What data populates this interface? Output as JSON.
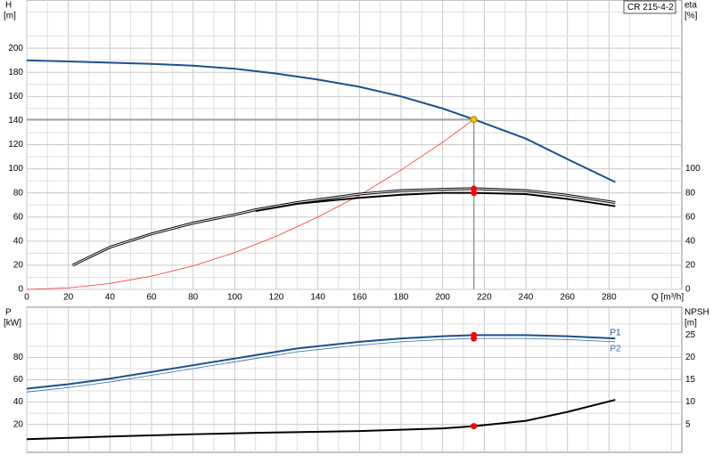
{
  "chart_data": [
    {
      "type": "line",
      "model": "CR 215-4-2",
      "ylabel": "H",
      "yunit": "[m]",
      "y2label": "eta",
      "y2unit": "[%]",
      "xlabel": "Q [m³/h]",
      "xlim": [
        0,
        315
      ],
      "xticks": [
        0,
        20,
        40,
        60,
        80,
        100,
        120,
        140,
        160,
        180,
        200,
        220,
        240,
        260,
        280
      ],
      "ylim": [
        0,
        240
      ],
      "yticks": [
        0,
        20,
        40,
        60,
        80,
        100,
        120,
        140,
        160,
        180,
        200
      ],
      "y2lim": [
        0,
        240
      ],
      "y2ticks": [
        0,
        20,
        40,
        60,
        80,
        100
      ],
      "grid": true,
      "series": [
        {
          "color": "#1c4f8f",
          "style": "thick",
          "x": [
            0,
            20,
            40,
            60,
            80,
            100,
            110,
            120,
            140,
            160,
            180,
            200,
            215,
            240,
            260,
            283
          ],
          "values": [
            190,
            189,
            188,
            187,
            185.5,
            183,
            181,
            179,
            174,
            168,
            160,
            150,
            141,
            125,
            108,
            89
          ]
        },
        {
          "color": "#ff3030",
          "style": "thin",
          "x": [
            0,
            20,
            40,
            60,
            80,
            100,
            120,
            140,
            160,
            180,
            200,
            215
          ],
          "values": [
            0,
            1.2,
            4.9,
            11,
            19.5,
            30.5,
            44,
            60,
            78,
            99,
            122,
            141
          ]
        },
        {
          "color": "#000000",
          "style": "double",
          "axis": "y2",
          "x": [
            22,
            40,
            60,
            80,
            100,
            110,
            130,
            160,
            180,
            200,
            215,
            240,
            260,
            283
          ],
          "values": [
            20,
            35,
            46,
            55,
            62,
            66,
            72,
            79,
            82,
            83,
            83.5,
            82,
            78,
            72
          ]
        },
        {
          "color": "#000000",
          "style": "thick",
          "axis": "y2",
          "x": [
            110,
            130,
            160,
            180,
            200,
            215,
            240,
            260,
            283
          ],
          "values": [
            65,
            71,
            76,
            78.5,
            80,
            80,
            79,
            75,
            69
          ]
        },
        {
          "marker": "#f5c400",
          "guide": true,
          "x": [
            215
          ],
          "values": [
            141
          ]
        },
        {
          "marker": "#ff0000",
          "axis": "y2",
          "x": [
            215,
            215
          ],
          "values": [
            80,
            83.5
          ]
        }
      ]
    },
    {
      "type": "line",
      "ylabel": "P",
      "yunit": "[kW]",
      "y2label": "NPSH",
      "y2unit": "[m]",
      "xlim": [
        0,
        315
      ],
      "ylim": [
        -5,
        125
      ],
      "yticks": [
        20,
        40,
        60,
        80
      ],
      "y2lim": [
        -1.25,
        31.25
      ],
      "y2ticks": [
        5,
        10,
        15,
        20,
        25
      ],
      "grid": true,
      "series": [
        {
          "name": "P1",
          "color": "#1c4f8f",
          "style": "thick",
          "x": [
            0,
            20,
            40,
            60,
            80,
            100,
            110,
            130,
            160,
            180,
            200,
            215,
            240,
            260,
            283
          ],
          "values": [
            52,
            56,
            61,
            67,
            73,
            79,
            82,
            88,
            94,
            97,
            99,
            100,
            100,
            99,
            97
          ]
        },
        {
          "name": "P2",
          "color": "#2f6bb0",
          "style": "thin",
          "x": [
            0,
            20,
            40,
            60,
            80,
            100,
            110,
            130,
            160,
            180,
            200,
            215,
            240,
            260,
            283
          ],
          "values": [
            49,
            53,
            58,
            64,
            70,
            76,
            79,
            85,
            91,
            94,
            96,
            97,
            97,
            96,
            94
          ]
        },
        {
          "color": "#000000",
          "style": "thick",
          "axis": "y2",
          "x": [
            0,
            40,
            80,
            110,
            160,
            200,
            215,
            240,
            260,
            283
          ],
          "values": [
            1.7,
            2.3,
            2.8,
            3.1,
            3.5,
            4.1,
            4.6,
            5.8,
            7.8,
            10.5
          ]
        },
        {
          "marker": "#ff0000",
          "x": [
            215,
            215
          ],
          "values": [
            100,
            97
          ]
        },
        {
          "marker": "#ff0000",
          "axis": "y2",
          "x": [
            215
          ],
          "values": [
            4.6
          ]
        }
      ]
    }
  ]
}
